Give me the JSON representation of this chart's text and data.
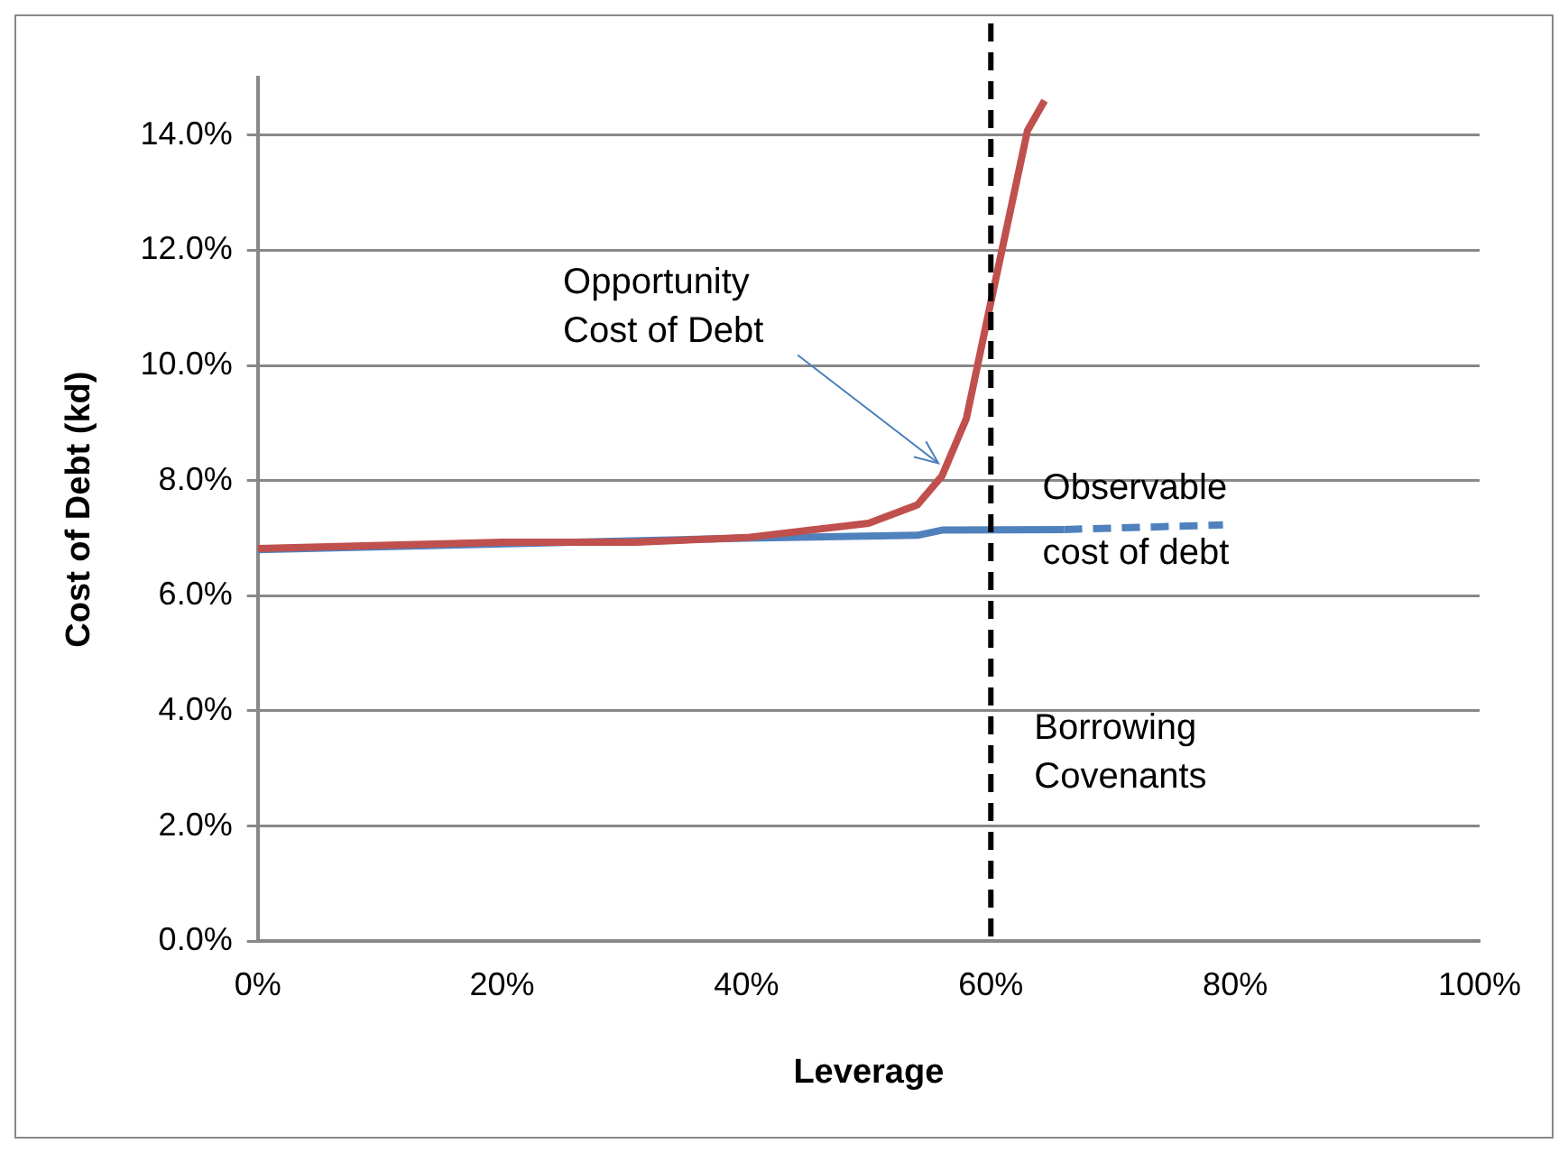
{
  "chart_data": {
    "type": "line",
    "xlabel": "Leverage",
    "ylabel": "Cost of Debt (kd)",
    "xlim": [
      0,
      100
    ],
    "ylim": [
      0,
      15
    ],
    "xticks": [
      {
        "value": 0,
        "label": "0%"
      },
      {
        "value": 20,
        "label": "20%"
      },
      {
        "value": 40,
        "label": "40%"
      },
      {
        "value": 60,
        "label": "60%"
      },
      {
        "value": 80,
        "label": "80%"
      },
      {
        "value": 100,
        "label": "100%"
      }
    ],
    "yticks": [
      {
        "value": 0,
        "label": "0.0%"
      },
      {
        "value": 2,
        "label": "2.0%"
      },
      {
        "value": 4,
        "label": "4.0%"
      },
      {
        "value": 6,
        "label": "6.0%"
      },
      {
        "value": 8,
        "label": "8.0%"
      },
      {
        "value": 10,
        "label": "10.0%"
      },
      {
        "value": 12,
        "label": "12.0%"
      },
      {
        "value": 14,
        "label": "14.0%"
      }
    ],
    "grid": "y",
    "legend": false,
    "marker": "none",
    "series": [
      {
        "color": "#c0504d",
        "line_style": "solid",
        "x": [
          0,
          20,
          31,
          40,
          50,
          54,
          56,
          58,
          60,
          63,
          64.4
        ],
        "values": [
          6.82,
          6.93,
          6.93,
          7.01,
          7.26,
          7.58,
          8.08,
          9.08,
          11.1,
          14.08,
          14.6
        ]
      },
      {
        "color": "#4f81bd",
        "line_style": "solid",
        "x": [
          0,
          40,
          54,
          56,
          66
        ],
        "values": [
          6.8,
          7.0,
          7.05,
          7.14,
          7.15
        ]
      },
      {
        "color": "#4f81bd",
        "line_style": "dashed",
        "x": [
          66,
          79
        ],
        "values": [
          7.15,
          7.23
        ]
      }
    ],
    "ref_lines": [
      {
        "axis": "x",
        "value": 60,
        "label": "Borrowing Covenants",
        "color": "#000000",
        "line_style": "dashed"
      }
    ],
    "annotations": [
      {
        "text": "Opportunity Cost of Debt",
        "x": 56,
        "y": 8.3
      },
      {
        "text": "Observable cost of debt",
        "x": 79,
        "y": 7.23
      }
    ]
  }
}
